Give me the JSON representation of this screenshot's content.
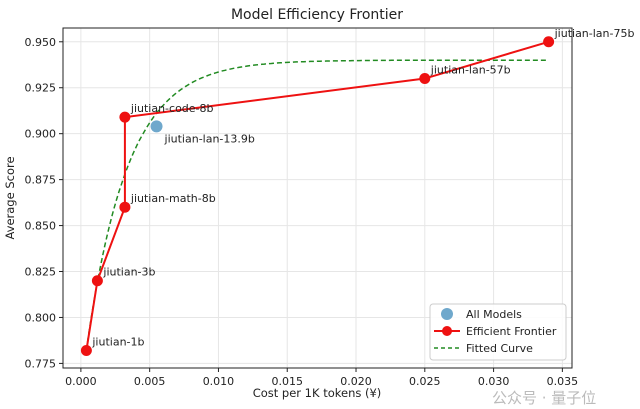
{
  "chart_data": {
    "type": "scatter",
    "title": "Model Efficiency Frontier",
    "xlabel": "Cost per 1K tokens (¥)",
    "ylabel": "Average Score",
    "xlim": [
      -0.0013,
      0.0357
    ],
    "ylim": [
      0.7725,
      0.9575
    ],
    "xticks": [
      "0.000",
      "0.005",
      "0.010",
      "0.015",
      "0.020",
      "0.025",
      "0.030",
      "0.035"
    ],
    "xtick_values": [
      0,
      0.005,
      0.01,
      0.015,
      0.02,
      0.025,
      0.03,
      0.035
    ],
    "yticks": [
      "0.775",
      "0.800",
      "0.825",
      "0.850",
      "0.875",
      "0.900",
      "0.925",
      "0.950"
    ],
    "ytick_values": [
      0.775,
      0.8,
      0.825,
      0.85,
      0.875,
      0.9,
      0.925,
      0.95
    ],
    "grid": true,
    "legend_position": "lower-right",
    "colors": {
      "all_models": "#6fa8cc",
      "frontier": "#ee1111",
      "fitted": "#228B22"
    },
    "legend": [
      "All Models",
      "Efficient Frontier",
      "Fitted Curve"
    ],
    "all_models": [
      {
        "name": "jiutian-lan-13.9b",
        "x": 0.0055,
        "y": 0.904
      }
    ],
    "frontier": [
      {
        "name": "jiutian-1b",
        "x": 0.0004,
        "y": 0.782
      },
      {
        "name": "jiutian-3b",
        "x": 0.0012,
        "y": 0.82
      },
      {
        "name": "jiutian-math-8b",
        "x": 0.0032,
        "y": 0.86
      },
      {
        "name": "jiutian-code-8b",
        "x": 0.0032,
        "y": 0.909
      },
      {
        "name": "jiutian-lan-57b",
        "x": 0.025,
        "y": 0.93
      },
      {
        "name": "jiutian-lan-75b",
        "x": 0.034,
        "y": 0.95
      }
    ],
    "fitted_curve": {
      "formula": "y = a - b*exp(-c*x)",
      "a": 0.94,
      "b": 0.18,
      "c": 333,
      "x_range": [
        0.0004,
        0.034
      ]
    }
  },
  "watermark": "公众号 · 量子位"
}
